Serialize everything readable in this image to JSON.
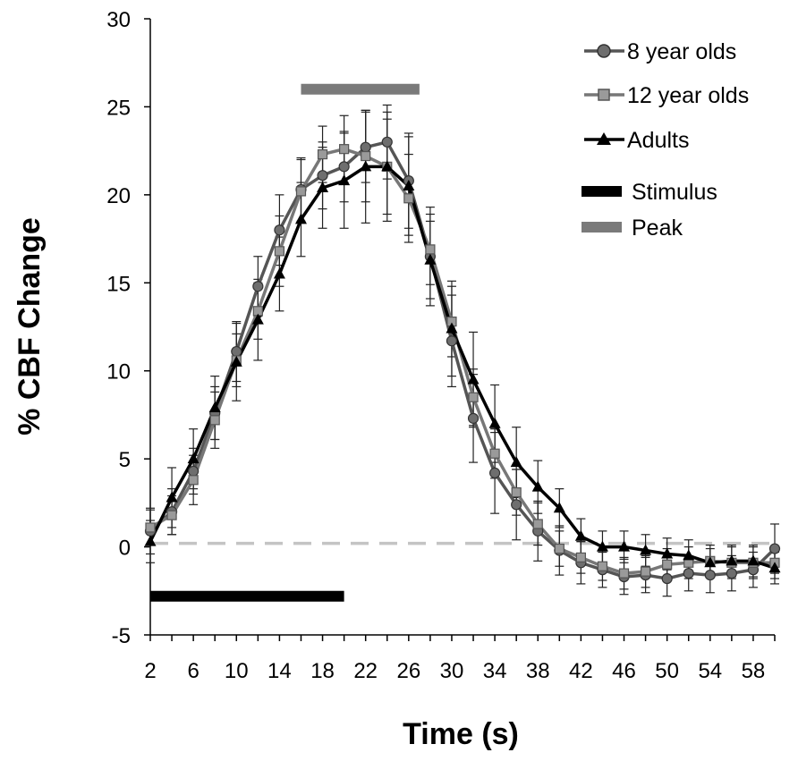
{
  "chart_data": {
    "type": "line",
    "title": "",
    "xlabel": "Time (s)",
    "ylabel": "% CBF Change",
    "xlim": [
      2,
      60
    ],
    "ylim": [
      -5,
      30
    ],
    "x_ticks": [
      2,
      6,
      10,
      14,
      18,
      22,
      26,
      30,
      34,
      38,
      42,
      46,
      50,
      54,
      58
    ],
    "y_ticks": [
      -5,
      0,
      5,
      10,
      15,
      20,
      25,
      30
    ],
    "x": [
      2,
      4,
      6,
      8,
      10,
      12,
      14,
      16,
      18,
      20,
      22,
      24,
      26,
      28,
      30,
      32,
      34,
      36,
      38,
      40,
      42,
      44,
      46,
      48,
      50,
      52,
      54,
      56,
      58,
      60
    ],
    "series": [
      {
        "name": "8 year olds",
        "marker": "circle",
        "color": "#555555",
        "values": [
          0.9,
          2.0,
          4.3,
          7.6,
          11.1,
          14.8,
          18.0,
          20.3,
          21.1,
          21.6,
          22.7,
          23.0,
          20.8,
          16.5,
          11.7,
          7.3,
          4.2,
          2.4,
          0.9,
          -0.2,
          -0.9,
          -1.3,
          -1.7,
          -1.6,
          -1.8,
          -1.5,
          -1.6,
          -1.5,
          -1.3,
          -0.1
        ],
        "errors": [
          1.3,
          1.3,
          1.3,
          1.5,
          1.7,
          1.7,
          2.0,
          1.8,
          1.9,
          2.0,
          2.0,
          2.1,
          2.7,
          2.8,
          2.6,
          2.5,
          2.3,
          2.0,
          1.7,
          1.4,
          1.2,
          1.0,
          1.0,
          1.0,
          1.0,
          1.0,
          1.0,
          1.0,
          1.0,
          1.4
        ]
      },
      {
        "name": "12 year olds",
        "marker": "square",
        "color": "#777777",
        "values": [
          1.1,
          1.8,
          3.8,
          7.2,
          10.6,
          13.4,
          16.8,
          20.2,
          22.3,
          22.6,
          22.2,
          21.6,
          19.8,
          16.9,
          12.8,
          8.5,
          5.3,
          3.1,
          1.3,
          -0.1,
          -0.6,
          -1.1,
          -1.5,
          -1.4,
          -1.0,
          -0.9,
          -0.8,
          -0.9,
          -0.9,
          -0.9
        ],
        "errors": [
          1.0,
          1.1,
          1.4,
          1.6,
          1.5,
          1.6,
          2.0,
          1.8,
          1.6,
          1.9,
          2.6,
          2.7,
          2.5,
          2.0,
          2.0,
          1.6,
          1.4,
          1.3,
          1.2,
          1.0,
          0.9,
          0.8,
          0.9,
          0.9,
          0.9,
          0.9,
          0.9,
          0.9,
          0.9,
          0.9
        ]
      },
      {
        "name": "Adults",
        "marker": "triangle",
        "color": "#000000",
        "values": [
          0.3,
          2.8,
          5.0,
          7.9,
          10.5,
          12.9,
          15.5,
          18.6,
          20.4,
          20.8,
          21.6,
          21.6,
          20.5,
          16.3,
          12.4,
          9.5,
          7.0,
          4.8,
          3.4,
          2.2,
          0.6,
          0.0,
          0.0,
          -0.2,
          -0.4,
          -0.5,
          -0.9,
          -0.8,
          -0.8,
          -1.2
        ],
        "errors": [
          1.2,
          1.7,
          1.7,
          1.8,
          2.2,
          2.3,
          2.1,
          2.1,
          2.3,
          2.7,
          3.2,
          3.1,
          2.8,
          2.2,
          2.7,
          2.7,
          2.2,
          2.0,
          1.5,
          1.1,
          1.0,
          0.9,
          0.9,
          0.9,
          0.9,
          0.9,
          0.8,
          0.9,
          0.9,
          0.9
        ]
      }
    ],
    "stimulus_bar": {
      "name": "Stimulus",
      "x_start": 2,
      "x_end": 20,
      "y": -2.8,
      "color": "#000000"
    },
    "peak_bar": {
      "name": "Peak",
      "x_start": 16,
      "x_end": 27,
      "y": 26.0,
      "color": "#7a7a7a"
    },
    "baseline": {
      "y": 0.2,
      "x_start": 2,
      "x_end": 60,
      "color": "#c4c4c4",
      "style": "dashed"
    },
    "legend_position": "top-right",
    "grid": false
  }
}
